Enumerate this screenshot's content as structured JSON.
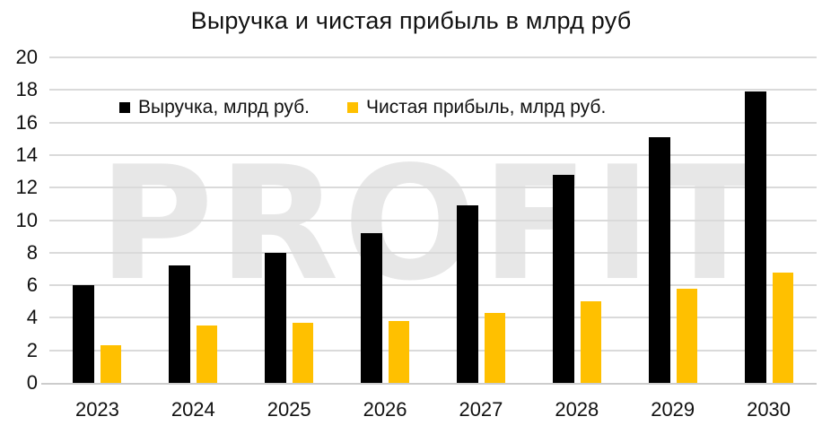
{
  "chart_data": {
    "type": "bar",
    "title": "Выручка и чистая прибыль в млрд руб",
    "categories": [
      "2023",
      "2024",
      "2025",
      "2026",
      "2027",
      "2028",
      "2029",
      "2030"
    ],
    "series": [
      {
        "key": "revenue",
        "name": "Выручка, млрд руб.",
        "color": "#000000",
        "values": [
          6.0,
          7.2,
          8.0,
          9.2,
          10.9,
          12.8,
          15.1,
          17.9
        ]
      },
      {
        "key": "net-profit",
        "name": "Чистая прибыль, млрд руб.",
        "color": "#FFC000",
        "values": [
          2.3,
          3.5,
          3.7,
          3.8,
          4.3,
          5.0,
          5.8,
          6.8
        ]
      }
    ],
    "xlabel": "",
    "ylabel": "",
    "ylim": [
      0,
      20
    ],
    "ytick_step": 2,
    "yticks": [
      0,
      2,
      4,
      6,
      8,
      10,
      12,
      14,
      16,
      18,
      20
    ],
    "grid": true,
    "legend_position": "inside-top-left",
    "watermark": "PROFIT",
    "colors": {
      "gridline": "#DADADA",
      "axis_line": "#CCCCCC",
      "text": "#111111",
      "watermark": "#E7E7E7",
      "background": "#FFFFFF"
    }
  }
}
